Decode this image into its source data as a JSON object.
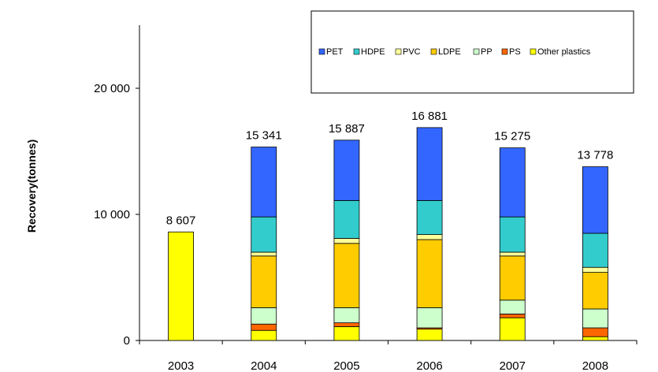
{
  "chart_data": {
    "type": "stacked-bar",
    "ylabel": "Recovery(tonnes)",
    "xlabel": "",
    "ylim": [
      0,
      25000
    ],
    "yticks": [
      0,
      10000,
      20000
    ],
    "ytick_labels": [
      "0",
      "10 000",
      "20 000"
    ],
    "legend_position": "top-right",
    "categories": [
      "2003",
      "2004",
      "2005",
      "2006",
      "2007",
      "2008"
    ],
    "totals": [
      8607,
      15341,
      15887,
      16881,
      15275,
      13778
    ],
    "total_labels": [
      "8 607",
      "15 341",
      "15 887",
      "16 881",
      "15 275",
      "13 778"
    ],
    "series": [
      {
        "name": "Other plastics",
        "color": "#ffff00",
        "values": [
          8607,
          800,
          1100,
          900,
          1800,
          300
        ]
      },
      {
        "name": "PS",
        "color": "#ff6600",
        "values": [
          0,
          500,
          300,
          100,
          300,
          700
        ]
      },
      {
        "name": "PP",
        "color": "#ccffcc",
        "values": [
          0,
          1300,
          1200,
          1600,
          1100,
          1500
        ]
      },
      {
        "name": "LDPE",
        "color": "#ffcc00",
        "values": [
          0,
          4100,
          5100,
          5400,
          3500,
          2900
        ]
      },
      {
        "name": "PVC",
        "color": "#ffff99",
        "values": [
          0,
          300,
          400,
          400,
          300,
          400
        ]
      },
      {
        "name": "HDPE",
        "color": "#33cccc",
        "values": [
          0,
          2800,
          3000,
          2700,
          2800,
          2700
        ]
      },
      {
        "name": "PET",
        "color": "#3366ff",
        "values": [
          0,
          5541,
          4787,
          5781,
          5475,
          5278
        ]
      }
    ],
    "legend_order": [
      "PET",
      "HDPE",
      "PVC",
      "LDPE",
      "PP",
      "PS",
      "Other plastics"
    ]
  }
}
